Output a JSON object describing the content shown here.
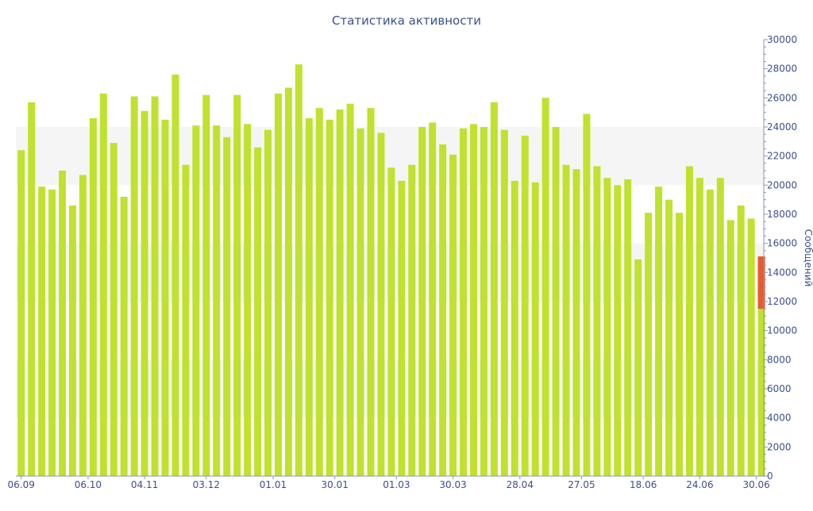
{
  "chart_data": {
    "type": "bar",
    "title": "Статистика активности",
    "ylabel": "Сообщений",
    "xlabel": "",
    "ylim": [
      0,
      30000
    ],
    "y_ticks": [
      0,
      2000,
      4000,
      6000,
      8000,
      10000,
      12000,
      14000,
      16000,
      18000,
      20000,
      22000,
      24000,
      26000,
      28000,
      30000
    ],
    "y_axis_side": "right",
    "grid": "alternating horizontal bands",
    "x_tick_labels": [
      {
        "index": 0,
        "label": "06.09"
      },
      {
        "index": 6.5,
        "label": "06.10"
      },
      {
        "index": 12,
        "label": "04.11"
      },
      {
        "index": 18,
        "label": "03.12"
      },
      {
        "index": 24.5,
        "label": "01.01"
      },
      {
        "index": 30.5,
        "label": "30.01"
      },
      {
        "index": 36.5,
        "label": "01.03"
      },
      {
        "index": 42,
        "label": "30.03"
      },
      {
        "index": 48.5,
        "label": "28.04"
      },
      {
        "index": 54.5,
        "label": "27.05"
      },
      {
        "index": 60.5,
        "label": "18.06"
      },
      {
        "index": 66,
        "label": "24.06"
      },
      {
        "index": 71.5,
        "label": "30.06"
      }
    ],
    "colors": {
      "bar": "#bfe22f",
      "highlight": "#e55c30",
      "axis": "#3b4f8f",
      "band": "#f5f5f5"
    },
    "values": [
      22400,
      25700,
      19900,
      19700,
      21000,
      18600,
      20700,
      24600,
      26300,
      22900,
      19200,
      26100,
      25100,
      26100,
      24500,
      27600,
      21400,
      24100,
      26200,
      24100,
      23300,
      26200,
      24200,
      22600,
      23800,
      26300,
      26700,
      28300,
      24600,
      25300,
      24500,
      25200,
      25600,
      23900,
      25300,
      23600,
      21200,
      20300,
      21400,
      24000,
      24300,
      22800,
      22100,
      23900,
      24200,
      24000,
      25700,
      23800,
      20300,
      23400,
      20200,
      26000,
      24000,
      21400,
      21100,
      24900,
      21300,
      20500,
      20000,
      20400,
      14900,
      18100,
      19900,
      19000,
      18100,
      21300,
      20500,
      19700,
      20500,
      17600,
      18600,
      17700,
      15100
    ],
    "highlight": {
      "index": 72,
      "from": 11500,
      "to": 15100
    }
  }
}
